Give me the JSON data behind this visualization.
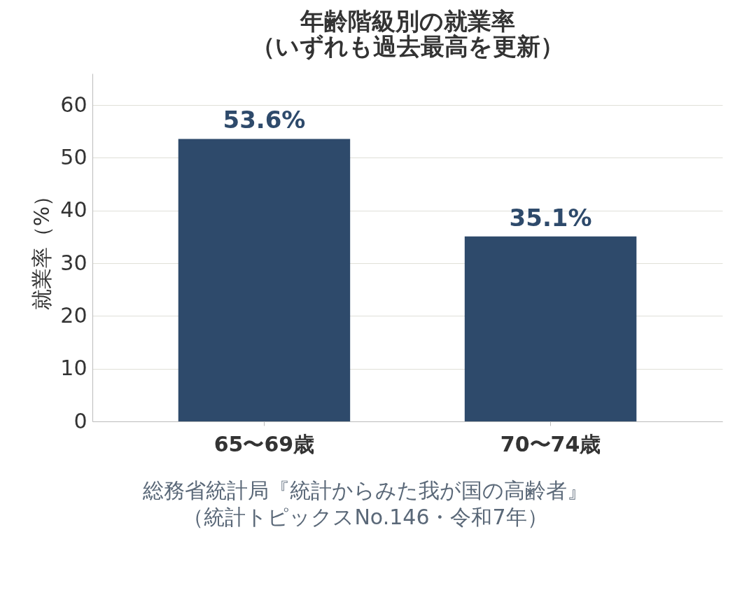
{
  "chart_data": {
    "type": "bar",
    "title": "年齢階級別の就業率（いずれも過去最高を更新）",
    "ylabel": "就業率（%）",
    "categories": [
      "65〜69歳",
      "70〜74歳"
    ],
    "series": [
      {
        "color": "#2e4a6b",
        "values": [
          53.6,
          35.1
        ]
      }
    ],
    "value_labels": [
      "53.6%",
      "35.1%"
    ],
    "ylim": [
      0,
      66
    ],
    "yticks": [
      0,
      10,
      20,
      30,
      40,
      50,
      60
    ],
    "grid": "y",
    "annotations": [
      "総務省統計局『統計からみた我が国の高齢者』",
      "（統計トピックスNo.146・令和7年）"
    ]
  }
}
